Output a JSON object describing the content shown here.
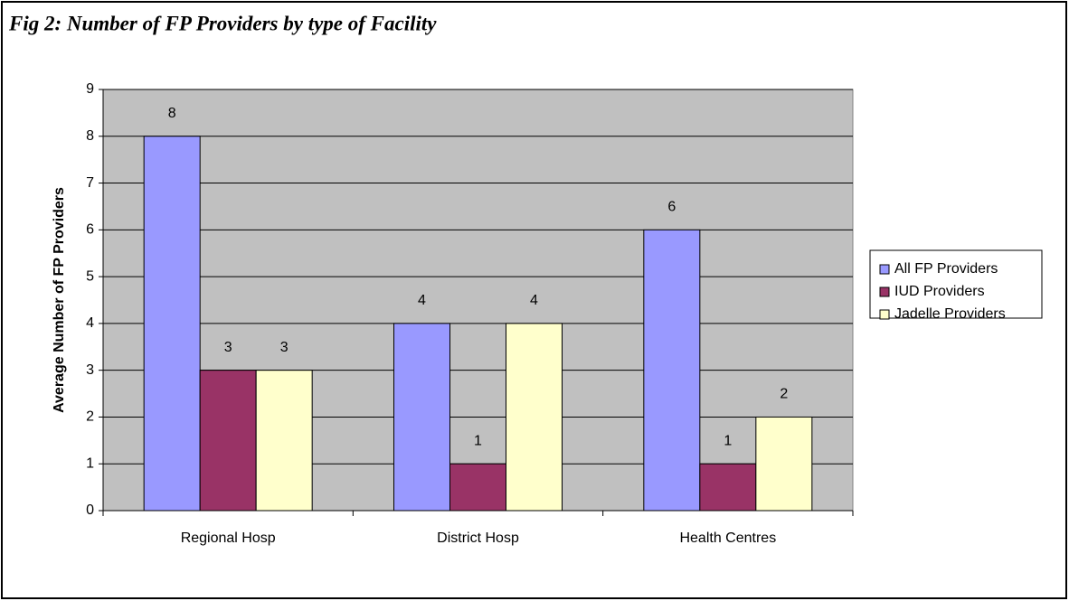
{
  "chart_data": {
    "type": "bar",
    "title": "Fig 2: Number of FP Providers by type of Facility",
    "y_label": "Average Number of FP Providers",
    "categories": [
      "Regional Hosp",
      "District Hosp",
      "Health Centres"
    ],
    "series": [
      {
        "name": "All FP Providers",
        "color": "#9999ff",
        "values": [
          8,
          4,
          6
        ]
      },
      {
        "name": "IUD Providers",
        "color": "#993366",
        "values": [
          3,
          1,
          1
        ]
      },
      {
        "name": "Jadelle Providers",
        "color": "#ffffcc",
        "values": [
          3,
          4,
          2
        ]
      }
    ],
    "ylim": [
      0,
      9
    ],
    "yticks": [
      0,
      1,
      2,
      3,
      4,
      5,
      6,
      7,
      8,
      9
    ],
    "grid": true,
    "legend": "right"
  }
}
